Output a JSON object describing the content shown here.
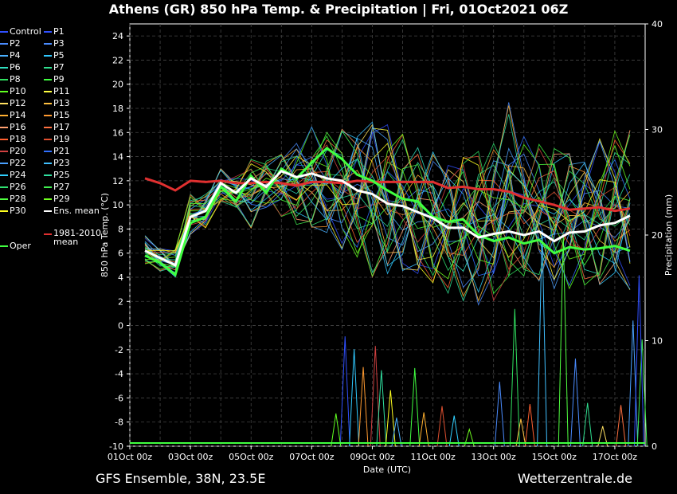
{
  "title": "Athens  (GR)  850 hPa Temp. & Precipitation | Fri, 01Oct2021 06Z",
  "footer_left": "GFS Ensemble, 38N, 23.5E",
  "footer_right": "Wetterzentrale.de",
  "chart_data": {
    "type": "line",
    "title": "Athens  (GR)  850 hPa Temp. & Precipitation | Fri, 01Oct2021 06Z",
    "xlabel": "Date (UTC)",
    "ylabel": "850 hPa Temp. (°C)",
    "y2label": "Precipitation (mm)",
    "x_ticks": [
      "01Oct 00z",
      "03Oct 00z",
      "05Oct 00z",
      "07Oct 00z",
      "09Oct 00z",
      "11Oct 00z",
      "13Oct 00z",
      "15Oct 00z",
      "17Oct 00z"
    ],
    "ylim": [
      -10,
      25
    ],
    "y_ticks": [
      -10,
      -8,
      -6,
      -4,
      -2,
      0,
      2,
      4,
      6,
      8,
      10,
      12,
      14,
      16,
      18,
      20,
      22,
      24
    ],
    "y2lim": [
      0,
      40
    ],
    "y2_ticks": [
      0,
      10,
      20,
      30,
      40
    ],
    "grid": true,
    "legend_placement": "left",
    "legend": [
      {
        "label": "Control",
        "color": "#3050ff"
      },
      {
        "label": "P1",
        "color": "#3050ff"
      },
      {
        "label": "P2",
        "color": "#4a8cff"
      },
      {
        "label": "P3",
        "color": "#4a8cff"
      },
      {
        "label": "P4",
        "color": "#4ab0ff"
      },
      {
        "label": "P5",
        "color": "#30c8ff"
      },
      {
        "label": "P6",
        "color": "#30e0c0"
      },
      {
        "label": "P7",
        "color": "#30e090"
      },
      {
        "label": "P8",
        "color": "#30e060"
      },
      {
        "label": "P9",
        "color": "#40ff40"
      },
      {
        "label": "P10",
        "color": "#60ff20"
      },
      {
        "label": "P11",
        "color": "#ffff40"
      },
      {
        "label": "P12",
        "color": "#ffe060"
      },
      {
        "label": "P13",
        "color": "#ffc040"
      },
      {
        "label": "P14",
        "color": "#ffb030"
      },
      {
        "label": "P15",
        "color": "#ff9a30"
      },
      {
        "label": "P16",
        "color": "#ffa070"
      },
      {
        "label": "P17",
        "color": "#ff7040"
      },
      {
        "label": "P18",
        "color": "#ff6030"
      },
      {
        "label": "P19",
        "color": "#e05030"
      },
      {
        "label": "P20",
        "color": "#d04040"
      },
      {
        "label": "P21",
        "color": "#3070ff"
      },
      {
        "label": "P22",
        "color": "#4aa0ff"
      },
      {
        "label": "P23",
        "color": "#40c0ff"
      },
      {
        "label": "P24",
        "color": "#30d0ff"
      },
      {
        "label": "P25",
        "color": "#30e0a0"
      },
      {
        "label": "P26",
        "color": "#30e070"
      },
      {
        "label": "P27",
        "color": "#40f050"
      },
      {
        "label": "P28",
        "color": "#50ff40"
      },
      {
        "label": "P29",
        "color": "#70ff20"
      },
      {
        "label": "P30",
        "color": "#ffff20"
      },
      {
        "label": "Ens. mean",
        "color": "#ffffff"
      },
      {
        "label": "1981-2010 mean",
        "color": "#e03030"
      },
      {
        "label": "Oper",
        "color": "#40ff40"
      }
    ],
    "ens_mean": {
      "name": "Ens. mean",
      "x": [
        0.5,
        1,
        1.5,
        2,
        2.5,
        3,
        3.5,
        4,
        4.5,
        5,
        5.5,
        6,
        6.5,
        7,
        7.5,
        8,
        8.5,
        9,
        9.5,
        10,
        10.5,
        11,
        11.5,
        12,
        12.5,
        13,
        13.5,
        14,
        14.5,
        15,
        15.5,
        16,
        16.5
      ],
      "y": [
        6.2,
        5.6,
        5.0,
        9.0,
        9.5,
        11.8,
        11.0,
        12.2,
        11.5,
        12.8,
        12.3,
        12.6,
        12.2,
        12.0,
        11.2,
        10.9,
        10.1,
        9.9,
        9.4,
        8.9,
        8.1,
        8.1,
        7.3,
        7.6,
        7.8,
        7.5,
        7.8,
        7.0,
        7.7,
        7.8,
        8.3,
        8.5,
        9.1
      ]
    },
    "climate_mean": {
      "name": "1981-2010 mean",
      "x": [
        0.5,
        1,
        1.5,
        2,
        2.5,
        3,
        3.5,
        4,
        4.5,
        5,
        5.5,
        6,
        6.5,
        7,
        7.5,
        8,
        8.5,
        9,
        9.5,
        10,
        10.5,
        11,
        11.5,
        12,
        12.5,
        13,
        13.5,
        14,
        14.5,
        15,
        15.5,
        16,
        16.5
      ],
      "y": [
        12.2,
        11.8,
        11.2,
        12.0,
        11.9,
        12.0,
        11.8,
        11.8,
        11.9,
        11.8,
        11.6,
        11.9,
        11.9,
        11.8,
        12.0,
        11.9,
        11.9,
        11.9,
        11.9,
        11.9,
        11.4,
        11.5,
        11.3,
        11.3,
        11.1,
        10.6,
        10.3,
        10.0,
        9.6,
        9.7,
        9.8,
        9.5,
        9.7
      ]
    },
    "oper": {
      "name": "Oper",
      "x": [
        0.5,
        1,
        1.5,
        2,
        2.5,
        3,
        3.5,
        4,
        4.5,
        5,
        5.5,
        6,
        6.5,
        7,
        7.5,
        8,
        8.5,
        9,
        9.5,
        10,
        10.5,
        11,
        11.5,
        12,
        12.5,
        13,
        13.5,
        14,
        14.5,
        15,
        15.5,
        16,
        16.5
      ],
      "y": [
        5.8,
        5.2,
        4.2,
        8.5,
        9.0,
        11.5,
        10.3,
        12.4,
        11.0,
        13.0,
        12.2,
        13.5,
        14.7,
        13.8,
        12.5,
        12.0,
        11.2,
        10.5,
        10.3,
        9.0,
        8.6,
        8.8,
        7.5,
        7.0,
        7.3,
        6.8,
        7.1,
        6.0,
        6.5,
        6.3,
        6.4,
        6.6,
        6.2
      ]
    },
    "members_range": {
      "x": [
        0.5,
        1,
        1.5,
        2,
        2.5,
        3,
        3.5,
        4,
        4.5,
        5,
        5.5,
        6,
        6.5,
        7,
        7.5,
        8,
        8.5,
        9,
        9.5,
        10,
        10.5,
        11,
        11.5,
        12,
        12.5,
        13,
        13.5,
        14,
        14.5,
        15,
        15.5,
        16,
        16.5
      ],
      "min": [
        5,
        4.5,
        4,
        7.5,
        8,
        10,
        9.5,
        8,
        9.5,
        9,
        8,
        7.5,
        7,
        6,
        5,
        4,
        3.5,
        4,
        3.5,
        3,
        2.5,
        2,
        1.5,
        1.5,
        2.5,
        3,
        3.5,
        2.5,
        3,
        3,
        2.5,
        3,
        2.5
      ],
      "max": [
        7.5,
        6.5,
        6.5,
        11,
        11,
        13,
        12.5,
        14,
        14,
        14.5,
        15.5,
        16.5,
        16.5,
        16.5,
        17,
        18,
        17,
        16,
        15,
        14.5,
        14,
        15,
        15,
        15.5,
        18.5,
        16,
        15.5,
        15.5,
        15,
        14.5,
        15.5,
        16.5,
        16.5
      ]
    },
    "precip_spikes_mm": [
      {
        "x": 7.1,
        "value": 10.4
      },
      {
        "x": 7.4,
        "value": 9.2
      },
      {
        "x": 6.8,
        "value": 3.1
      },
      {
        "x": 7.7,
        "value": 7.5
      },
      {
        "x": 8.1,
        "value": 9.5
      },
      {
        "x": 8.3,
        "value": 7.2
      },
      {
        "x": 8.6,
        "value": 5.3
      },
      {
        "x": 8.8,
        "value": 2.7
      },
      {
        "x": 9.4,
        "value": 7.4
      },
      {
        "x": 9.7,
        "value": 3.2
      },
      {
        "x": 10.3,
        "value": 3.8
      },
      {
        "x": 10.7,
        "value": 2.9
      },
      {
        "x": 11.2,
        "value": 1.6
      },
      {
        "x": 12.2,
        "value": 6.1
      },
      {
        "x": 12.7,
        "value": 13.0
      },
      {
        "x": 12.9,
        "value": 2.6
      },
      {
        "x": 13.2,
        "value": 4.0
      },
      {
        "x": 13.6,
        "value": 20.5
      },
      {
        "x": 14.3,
        "value": 20.0
      },
      {
        "x": 14.7,
        "value": 8.3
      },
      {
        "x": 15.1,
        "value": 4.1
      },
      {
        "x": 15.6,
        "value": 1.9
      },
      {
        "x": 16.2,
        "value": 3.9
      },
      {
        "x": 16.6,
        "value": 11.9
      },
      {
        "x": 16.9,
        "value": 10.1
      },
      {
        "x": 16.8,
        "value": 16.2
      }
    ]
  }
}
